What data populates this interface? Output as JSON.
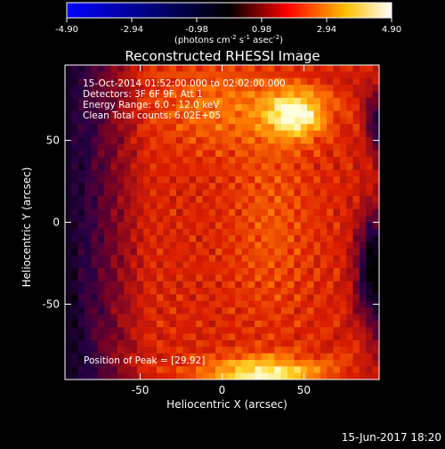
{
  "chart_data": {
    "type": "heatmap",
    "title": "Reconstructed RHESSI Image",
    "xlabel": "Heliocentric X (arcsec)",
    "ylabel": "Heliocentric Y (arcsec)",
    "xlim": [
      -96,
      96
    ],
    "ylim": [
      -96,
      96
    ],
    "x_ticks": [
      -50,
      0,
      50
    ],
    "y_ticks": [
      50,
      0,
      -50
    ],
    "colorbar": {
      "range": [
        -4.9,
        4.9
      ],
      "ticks": [
        "-4.90",
        "-2.94",
        "-0.98",
        "0.98",
        "2.94",
        "4.90"
      ],
      "unit_main": "(photons cm",
      "unit_exp1": "-2",
      "unit_mid": " s",
      "unit_exp2": "-1",
      "unit_end": " asec",
      "unit_exp3": "-2",
      "unit_close": ")"
    },
    "annotations": [
      "15-Oct-2014 01:52:00.000 to 02:02:00.000",
      "Detectors: 3F 6F 9F, Att 1",
      "Energy Range: 6.0 - 12.0 keV",
      "Clean     Total counts: 6.02E+05"
    ],
    "peak_label": "Position of Peak = [29,92]",
    "peak": [
      29,
      92
    ],
    "grid": false,
    "colormap": [
      "#0000ff",
      "#000000",
      "#ff0000",
      "#ffff00",
      "#ffffff"
    ]
  },
  "footer": {
    "date": "15-Jun-2017 18:20"
  }
}
